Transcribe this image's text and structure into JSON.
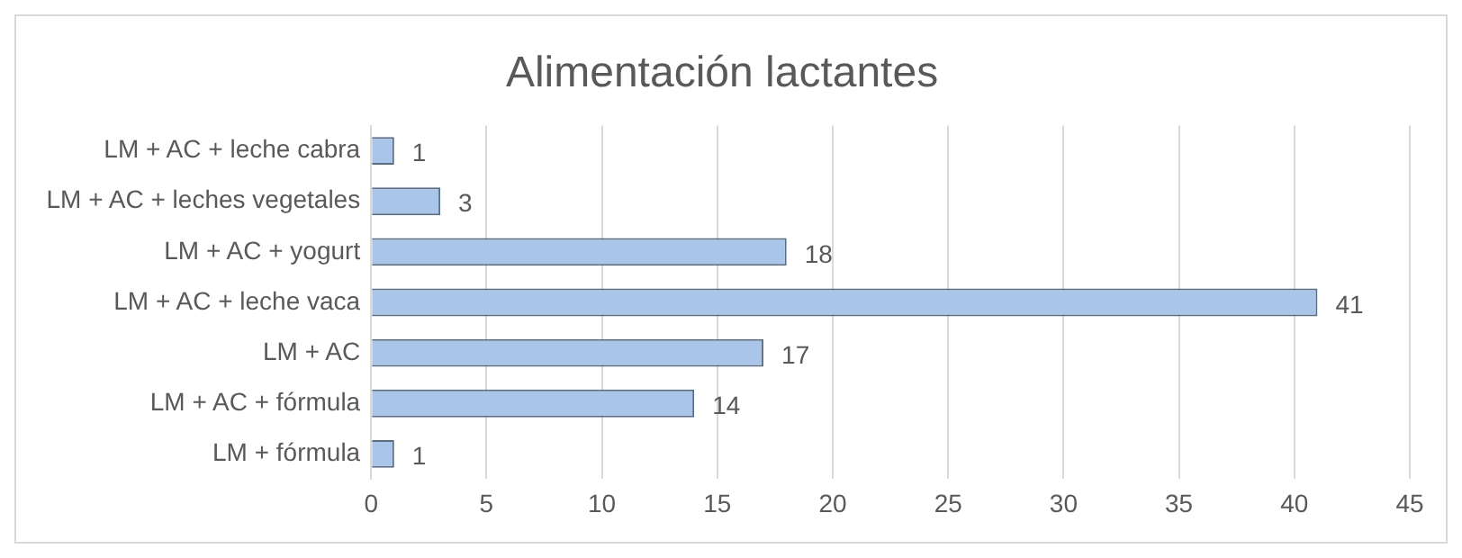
{
  "chart_data": {
    "type": "bar",
    "orientation": "horizontal",
    "title": "Alimentación lactantes",
    "categories": [
      "LM + AC + leche cabra",
      "LM + AC + leches vegetales",
      "LM + AC + yogurt",
      "LM + AC + leche vaca",
      "LM + AC",
      "LM + AC + fórmula",
      "LM + fórmula"
    ],
    "values": [
      1,
      3,
      18,
      41,
      17,
      14,
      1
    ],
    "color": "#a9c6ea",
    "xlim": [
      0,
      45
    ],
    "xticks": [
      0,
      5,
      10,
      15,
      20,
      25,
      30,
      35,
      40,
      45
    ],
    "grid": "x",
    "data_labels": true,
    "legend": false
  }
}
